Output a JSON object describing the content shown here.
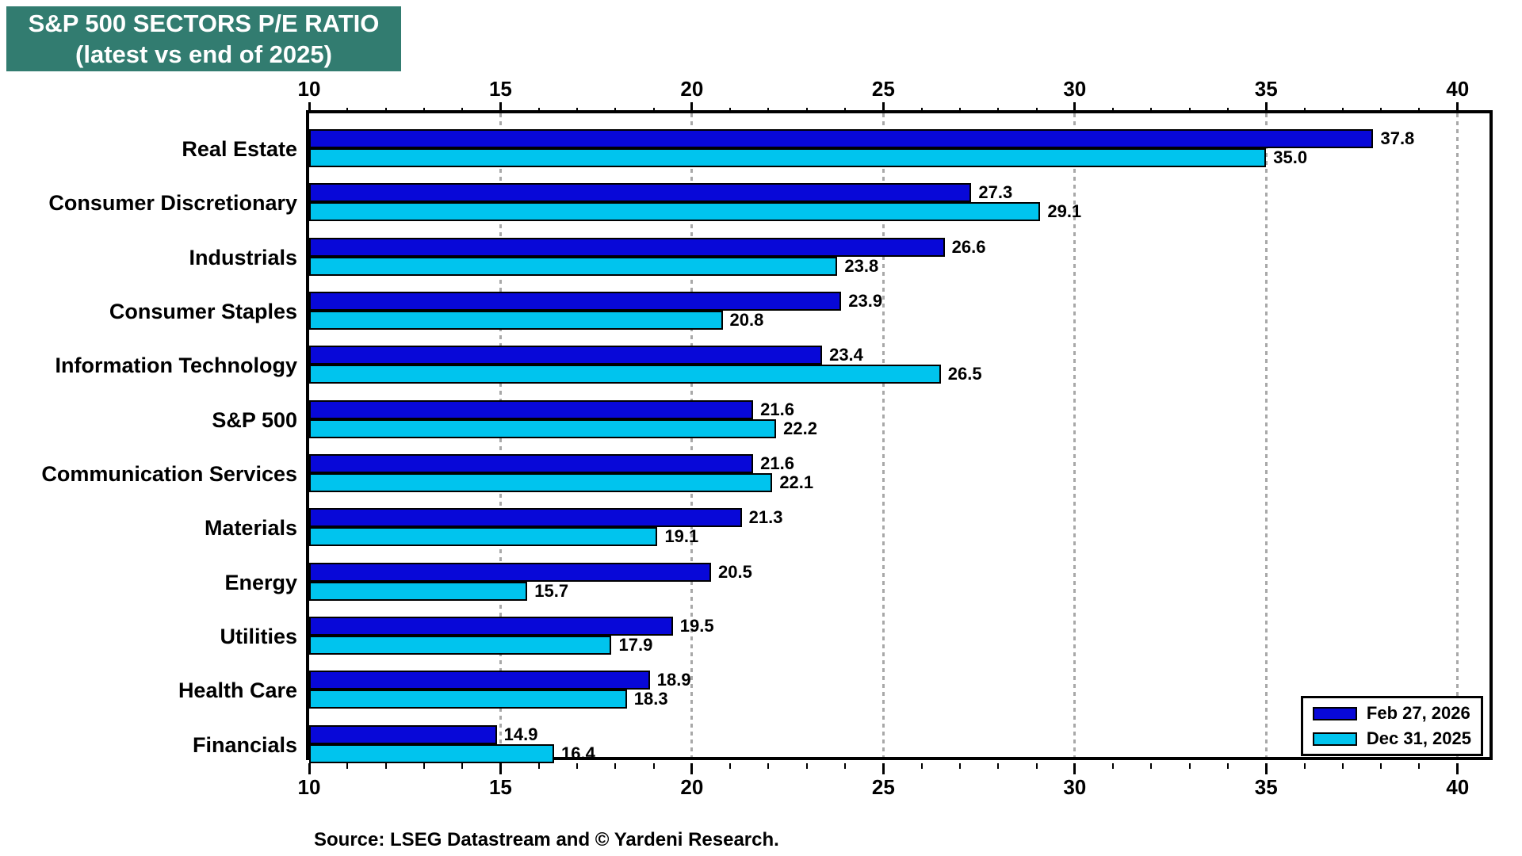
{
  "title": {
    "line1": "S&P 500 SECTORS P/E RATIO",
    "line2": "(latest vs end of 2025)"
  },
  "source": "Source: LSEG Datastream and © Yardeni Research.",
  "colors": {
    "title_background": "#327c70",
    "series1": "#0808d8",
    "series2": "#00c4ee",
    "gridline": "#a8a8a8"
  },
  "legend": {
    "items": [
      {
        "label": "Feb 27, 2026",
        "color": "#0808d8"
      },
      {
        "label": "Dec 31, 2025",
        "color": "#00c4ee"
      }
    ]
  },
  "chart_data": {
    "type": "bar",
    "orientation": "horizontal",
    "title": "S&P 500 SECTORS P/E RATIO (latest vs end of 2025)",
    "categories": [
      "Real Estate",
      "Consumer Discretionary",
      "Industrials",
      "Consumer Staples",
      "Information Technology",
      "S&P 500",
      "Communication Services",
      "Materials",
      "Energy",
      "Utilities",
      "Health Care",
      "Financials"
    ],
    "series": [
      {
        "name": "Feb 27, 2026",
        "color": "#0808d8",
        "values": [
          37.8,
          27.3,
          26.6,
          23.9,
          23.4,
          21.6,
          21.6,
          21.3,
          20.5,
          19.5,
          18.9,
          14.9
        ]
      },
      {
        "name": "Dec 31, 2025",
        "color": "#00c4ee",
        "values": [
          35.0,
          29.1,
          23.8,
          20.8,
          26.5,
          22.2,
          22.1,
          19.1,
          15.7,
          17.9,
          18.3,
          16.4
        ]
      }
    ],
    "xlim": [
      10,
      41
    ],
    "ticks": [
      10,
      15,
      20,
      25,
      30,
      35,
      40
    ],
    "minor_tick_step": 1,
    "gridlines_at": [
      15,
      20,
      25,
      30,
      35,
      40
    ],
    "grid": "dotted-vertical",
    "legend_position": "bottom-right",
    "value_labels": "outside-end, one decimal"
  }
}
